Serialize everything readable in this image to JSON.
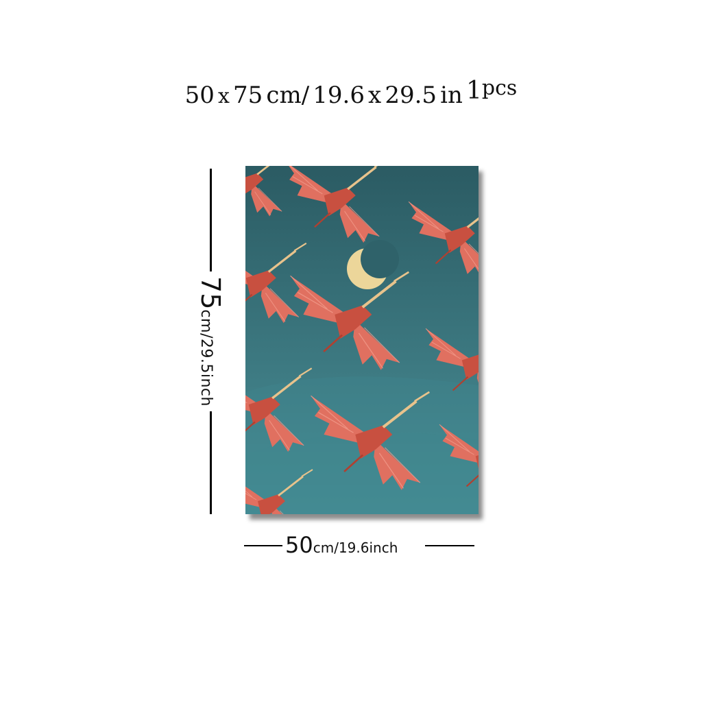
{
  "header": {
    "w": "50",
    "x1": "x",
    "h": "75",
    "unit_cm": "cm/",
    "w_in": "19.6",
    "x2": "x",
    "h_in": "29.5",
    "unit_in": "in",
    "qty": "1",
    "pcs": "pcs"
  },
  "height_label": {
    "value": "75",
    "unit": "cm/29.5inch"
  },
  "width_label": {
    "value": "50",
    "unit": "cm/19.6inch"
  },
  "artwork": {
    "subject": "flying-spoonbills-with-crescent-moon",
    "colors": {
      "sky_top": "#2b5b63",
      "sky_bottom": "#4a9098",
      "bird": "#e07060",
      "bird_dark": "#c85040",
      "moon": "#ecd69a"
    }
  }
}
